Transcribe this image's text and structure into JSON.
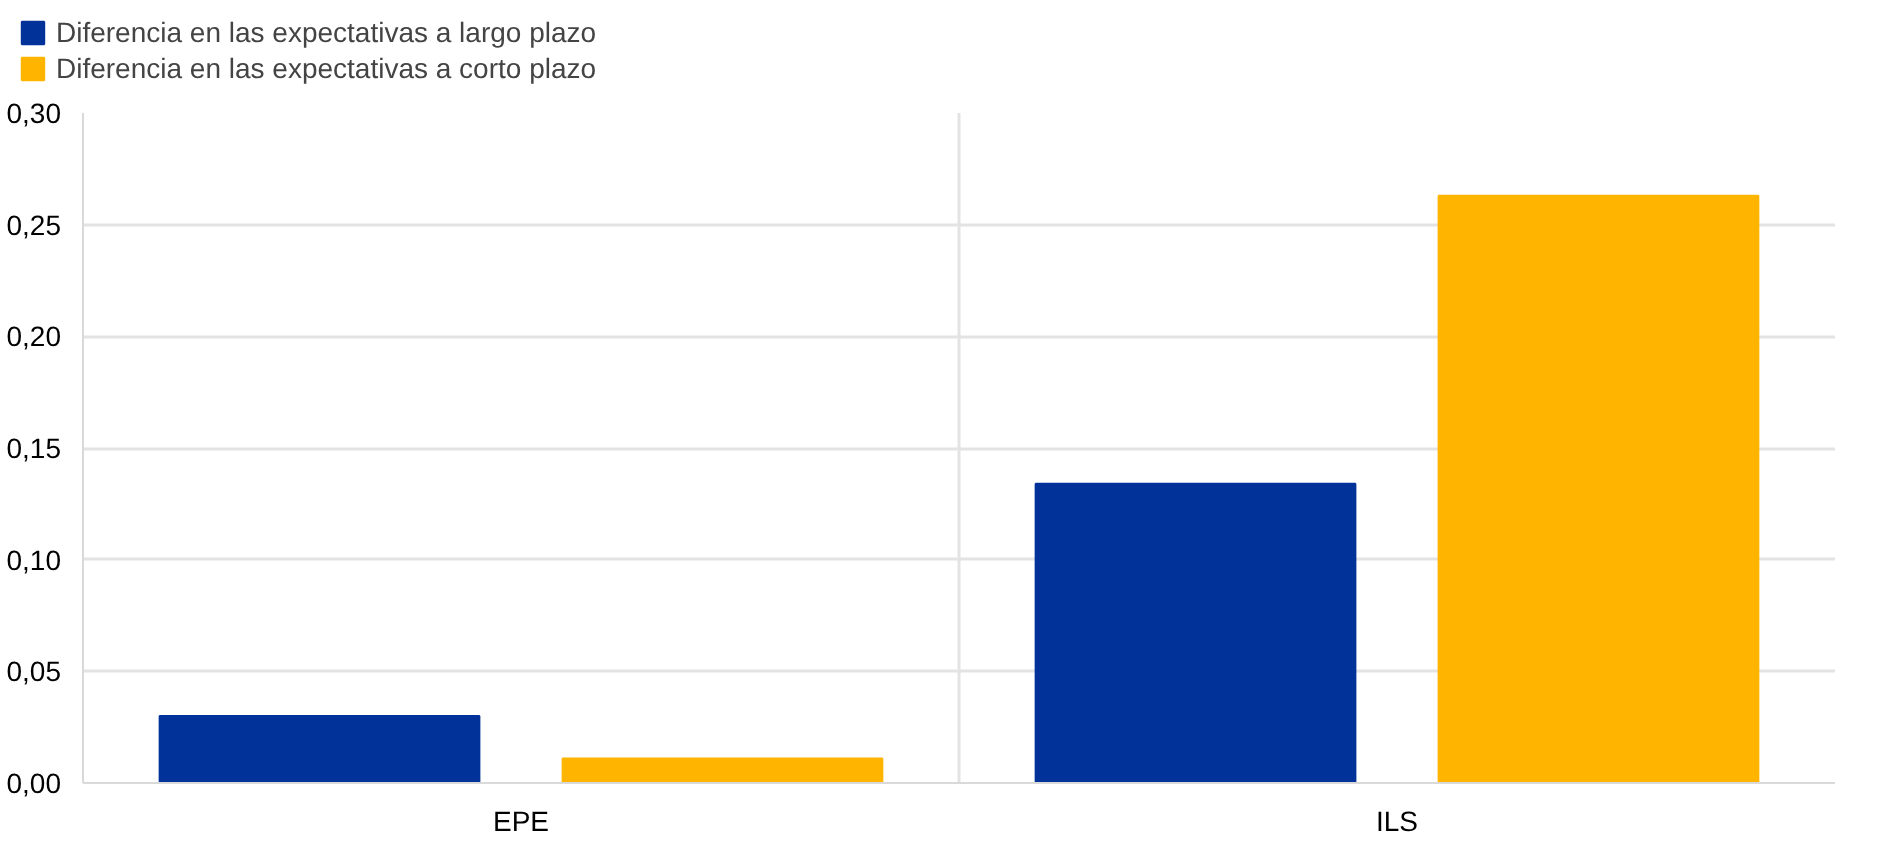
{
  "chart_data": {
    "type": "bar",
    "categories": [
      "EPE",
      "ILS"
    ],
    "series": [
      {
        "name": "Diferencia en las expectativas a largo plazo",
        "color": "#003299",
        "values": [
          0.03,
          0.134
        ]
      },
      {
        "name": "Diferencia en las expectativas a corto plazo",
        "color": "#ffb400",
        "values": [
          0.011,
          0.263
        ]
      }
    ],
    "ylim": [
      0,
      0.3
    ],
    "yticks": [
      {
        "value": 0,
        "label": "0,00"
      },
      {
        "value": 0.05,
        "label": "0,05"
      },
      {
        "value": 0.1,
        "label": "0,10"
      },
      {
        "value": 0.15,
        "label": "0,15"
      },
      {
        "value": 0.2,
        "label": "0,20"
      },
      {
        "value": 0.25,
        "label": "0,25"
      },
      {
        "value": 0.3,
        "label": "0,30"
      }
    ],
    "grid": true,
    "legend": "top left"
  }
}
